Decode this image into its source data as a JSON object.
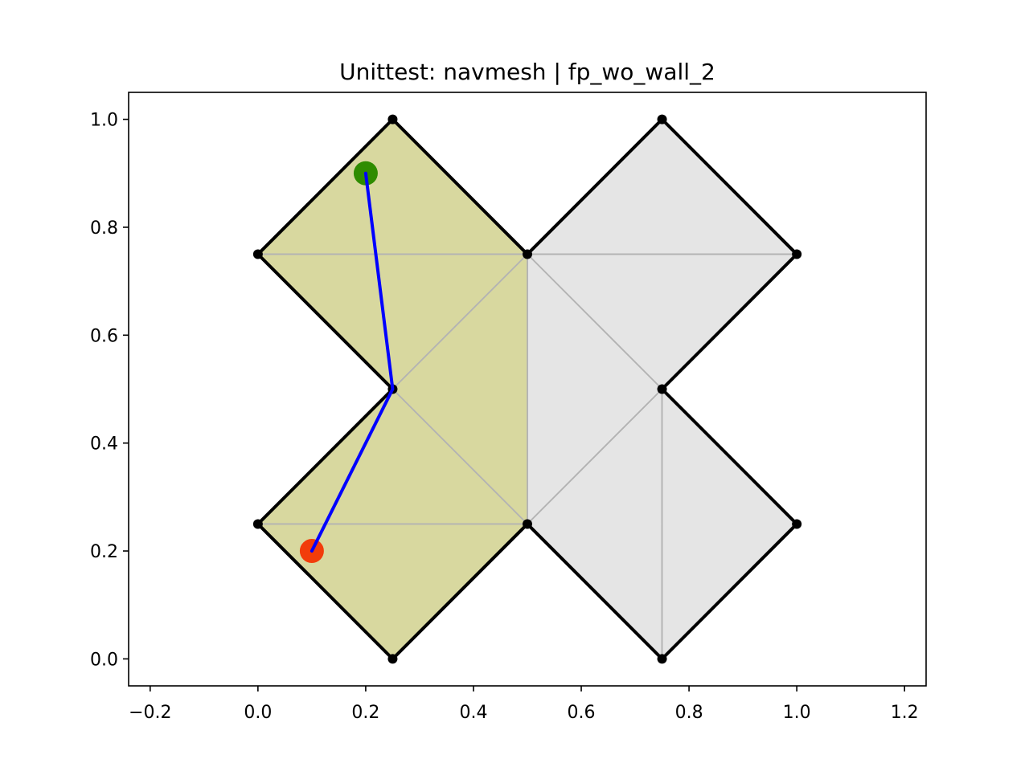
{
  "chart_data": {
    "type": "navmesh-plot",
    "title": "Unittest: navmesh | fp_wo_wall_2",
    "xlabel": "",
    "ylabel": "",
    "xlim": [
      -0.24,
      1.24
    ],
    "ylim": [
      -0.05,
      1.05
    ],
    "xticks": [
      -0.2,
      0.0,
      0.2,
      0.4,
      0.6,
      0.8,
      1.0,
      1.2
    ],
    "xtick_labels": [
      "−0.2",
      "0.0",
      "0.2",
      "0.4",
      "0.6",
      "0.8",
      "1.0",
      "1.2"
    ],
    "yticks": [
      0.0,
      0.2,
      0.4,
      0.6,
      0.8,
      1.0
    ],
    "ytick_labels": [
      "0.0",
      "0.2",
      "0.4",
      "0.6",
      "0.8",
      "1.0"
    ],
    "grid": false,
    "colors": {
      "highlighted_fill": "#d8d89f",
      "unvisited_fill": "#e5e5e5",
      "mesh_edge": "#b3b3b3",
      "boundary": "#000000",
      "vertex": "#000000",
      "path": "#0000ff",
      "start": "#f23c0a",
      "goal": "#2f8c00"
    },
    "highlighted_triangles": [
      [
        [
          0.0,
          0.75
        ],
        [
          0.25,
          1.0
        ],
        [
          0.5,
          0.75
        ]
      ],
      [
        [
          0.0,
          0.75
        ],
        [
          0.5,
          0.75
        ],
        [
          0.25,
          0.5
        ]
      ],
      [
        [
          0.25,
          0.5
        ],
        [
          0.5,
          0.75
        ],
        [
          0.5,
          0.25
        ]
      ],
      [
        [
          0.0,
          0.25
        ],
        [
          0.25,
          0.5
        ],
        [
          0.5,
          0.25
        ]
      ],
      [
        [
          0.0,
          0.25
        ],
        [
          0.5,
          0.25
        ],
        [
          0.25,
          0.0
        ]
      ]
    ],
    "unvisited_triangles": [
      [
        [
          0.5,
          0.75
        ],
        [
          0.75,
          1.0
        ],
        [
          1.0,
          0.75
        ]
      ],
      [
        [
          0.5,
          0.75
        ],
        [
          1.0,
          0.75
        ],
        [
          0.75,
          0.5
        ]
      ],
      [
        [
          0.5,
          0.75
        ],
        [
          0.75,
          0.5
        ],
        [
          0.5,
          0.25
        ]
      ],
      [
        [
          0.5,
          0.25
        ],
        [
          0.75,
          0.5
        ],
        [
          0.75,
          0.0
        ]
      ],
      [
        [
          0.75,
          0.5
        ],
        [
          1.0,
          0.25
        ],
        [
          0.75,
          0.0
        ]
      ]
    ],
    "boundary": [
      [
        0.0,
        0.25
      ],
      [
        0.25,
        0.5
      ],
      [
        0.0,
        0.75
      ],
      [
        0.25,
        1.0
      ],
      [
        0.5,
        0.75
      ],
      [
        0.75,
        1.0
      ],
      [
        1.0,
        0.75
      ],
      [
        0.75,
        0.5
      ],
      [
        1.0,
        0.25
      ],
      [
        0.75,
        0.0
      ],
      [
        0.5,
        0.25
      ],
      [
        0.25,
        0.0
      ]
    ],
    "vertices": [
      [
        0.0,
        0.25
      ],
      [
        0.25,
        0.5
      ],
      [
        0.0,
        0.75
      ],
      [
        0.25,
        1.0
      ],
      [
        0.5,
        0.75
      ],
      [
        0.75,
        1.0
      ],
      [
        1.0,
        0.75
      ],
      [
        0.75,
        0.5
      ],
      [
        1.0,
        0.25
      ],
      [
        0.75,
        0.0
      ],
      [
        0.5,
        0.25
      ],
      [
        0.25,
        0.0
      ]
    ],
    "path": [
      [
        0.1,
        0.2
      ],
      [
        0.25,
        0.5
      ],
      [
        0.2,
        0.9
      ]
    ],
    "start_point": [
      0.1,
      0.2
    ],
    "goal_point": [
      0.2,
      0.9
    ]
  }
}
